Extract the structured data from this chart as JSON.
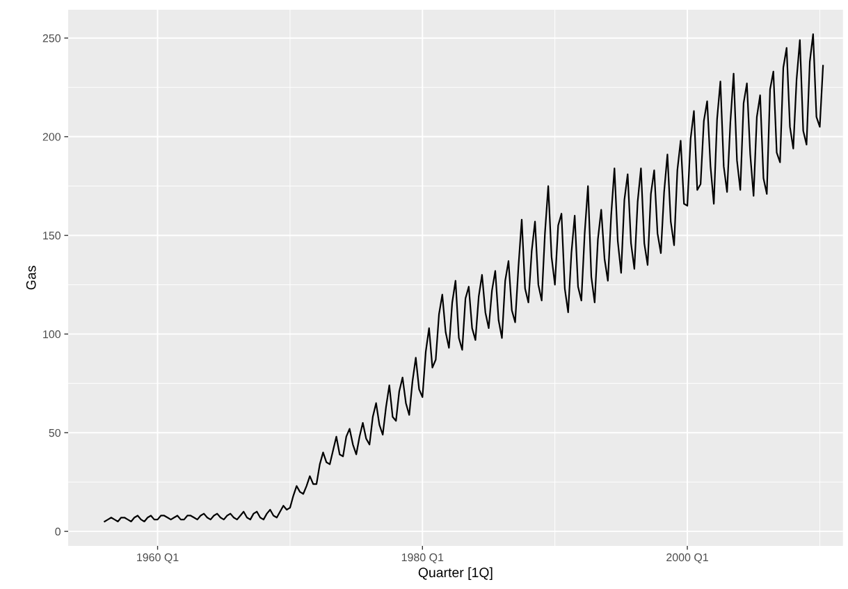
{
  "chart_data": {
    "type": "line",
    "xlabel": "Quarter [1Q]",
    "ylabel": "Gas",
    "x": [
      "1956-01",
      "1956-04",
      "1956-07",
      "1956-10",
      "1957-01",
      "1957-04",
      "1957-07",
      "1957-10",
      "1958-01",
      "1958-04",
      "1958-07",
      "1958-10",
      "1959-01",
      "1959-04",
      "1959-07",
      "1959-10",
      "1960-01",
      "1960-04",
      "1960-07",
      "1960-10",
      "1961-01",
      "1961-04",
      "1961-07",
      "1961-10",
      "1962-01",
      "1962-04",
      "1962-07",
      "1962-10",
      "1963-01",
      "1963-04",
      "1963-07",
      "1963-10",
      "1964-01",
      "1964-04",
      "1964-07",
      "1964-10",
      "1965-01",
      "1965-04",
      "1965-07",
      "1965-10",
      "1966-01",
      "1966-04",
      "1966-07",
      "1966-10",
      "1967-01",
      "1967-04",
      "1967-07",
      "1967-10",
      "1968-01",
      "1968-04",
      "1968-07",
      "1968-10",
      "1969-01",
      "1969-04",
      "1969-07",
      "1969-10",
      "1970-01",
      "1970-04",
      "1970-07",
      "1970-10",
      "1971-01",
      "1971-04",
      "1971-07",
      "1971-10",
      "1972-01",
      "1972-04",
      "1972-07",
      "1972-10",
      "1973-01",
      "1973-04",
      "1973-07",
      "1973-10",
      "1974-01",
      "1974-04",
      "1974-07",
      "1974-10",
      "1975-01",
      "1975-04",
      "1975-07",
      "1975-10",
      "1976-01",
      "1976-04",
      "1976-07",
      "1976-10",
      "1977-01",
      "1977-04",
      "1977-07",
      "1977-10",
      "1978-01",
      "1978-04",
      "1978-07",
      "1978-10",
      "1979-01",
      "1979-04",
      "1979-07",
      "1979-10",
      "1980-01",
      "1980-04",
      "1980-07",
      "1980-10",
      "1981-01",
      "1981-04",
      "1981-07",
      "1981-10",
      "1982-01",
      "1982-04",
      "1982-07",
      "1982-10",
      "1983-01",
      "1983-04",
      "1983-07",
      "1983-10",
      "1984-01",
      "1984-04",
      "1984-07",
      "1984-10",
      "1985-01",
      "1985-04",
      "1985-07",
      "1985-10",
      "1986-01",
      "1986-04",
      "1986-07",
      "1986-10",
      "1987-01",
      "1987-04",
      "1987-07",
      "1987-10",
      "1988-01",
      "1988-04",
      "1988-07",
      "1988-10",
      "1989-01",
      "1989-04",
      "1989-07",
      "1989-10",
      "1990-01",
      "1990-04",
      "1990-07",
      "1990-10",
      "1991-01",
      "1991-04",
      "1991-07",
      "1991-10",
      "1992-01",
      "1992-04",
      "1992-07",
      "1992-10",
      "1993-01",
      "1993-04",
      "1993-07",
      "1993-10",
      "1994-01",
      "1994-04",
      "1994-07",
      "1994-10",
      "1995-01",
      "1995-04",
      "1995-07",
      "1995-10",
      "1996-01",
      "1996-04",
      "1996-07",
      "1996-10",
      "1997-01",
      "1997-04",
      "1997-07",
      "1997-10",
      "1998-01",
      "1998-04",
      "1998-07",
      "1998-10",
      "1999-01",
      "1999-04",
      "1999-07",
      "1999-10",
      "2000-01",
      "2000-04",
      "2000-07",
      "2000-10",
      "2001-01",
      "2001-04",
      "2001-07",
      "2001-10",
      "2002-01",
      "2002-04",
      "2002-07",
      "2002-10",
      "2003-01",
      "2003-04",
      "2003-07",
      "2003-10",
      "2004-01",
      "2004-04",
      "2004-07",
      "2004-10",
      "2005-01",
      "2005-04",
      "2005-07",
      "2005-10",
      "2006-01",
      "2006-04",
      "2006-07",
      "2006-10",
      "2007-01",
      "2007-04",
      "2007-07",
      "2007-10",
      "2008-01",
      "2008-04",
      "2008-07",
      "2008-10",
      "2009-01",
      "2009-04",
      "2009-07",
      "2009-10",
      "2010-01",
      "2010-04"
    ],
    "series": [
      {
        "color": "#000000",
        "values": [
          5,
          6,
          7,
          6,
          5,
          7,
          7,
          6,
          5,
          7,
          8,
          6,
          5,
          7,
          8,
          6,
          6,
          8,
          8,
          7,
          6,
          7,
          8,
          6,
          6,
          8,
          8,
          7,
          6,
          8,
          9,
          7,
          6,
          8,
          9,
          7,
          6,
          8,
          9,
          7,
          6,
          8,
          10,
          7,
          6,
          9,
          10,
          7,
          6,
          9,
          11,
          8,
          7,
          10,
          13,
          11,
          12,
          18,
          23,
          20,
          19,
          23,
          28,
          24,
          24,
          34,
          40,
          35,
          34,
          41,
          48,
          39,
          38,
          48,
          52,
          44,
          39,
          48,
          55,
          47,
          44,
          58,
          65,
          54,
          49,
          63,
          74,
          58,
          56,
          71,
          78,
          65,
          59,
          76,
          88,
          72,
          68,
          91,
          103,
          83,
          87,
          110,
          120,
          101,
          93,
          116,
          127,
          98,
          92,
          118,
          124,
          103,
          97,
          119,
          130,
          111,
          103,
          122,
          132,
          107,
          98,
          127,
          137,
          112,
          106,
          134,
          158,
          123,
          116,
          142,
          157,
          125,
          117,
          151,
          175,
          139,
          125,
          155,
          161,
          123,
          111,
          141,
          160,
          124,
          117,
          151,
          175,
          129,
          116,
          148,
          163,
          138,
          127,
          160,
          184,
          147,
          131,
          168,
          181,
          146,
          133,
          167,
          184,
          146,
          135,
          171,
          183,
          151,
          141,
          172,
          191,
          157,
          145,
          183,
          198,
          166,
          165,
          199,
          213,
          173,
          176,
          208,
          218,
          185,
          166,
          209,
          228,
          185,
          172,
          207,
          232,
          188,
          173,
          217,
          227,
          191,
          170,
          210,
          221,
          179,
          171,
          224,
          233,
          192,
          187,
          235,
          245,
          205,
          194,
          229,
          249,
          203,
          196,
          238,
          252,
          210,
          205,
          236
        ]
      }
    ],
    "xlim": [
      "1953-04",
      "2011-10"
    ],
    "ylim": [
      -7.35,
      264.35
    ],
    "xticks": [
      {
        "value": "1960-01",
        "label": "1960 Q1"
      },
      {
        "value": "1980-01",
        "label": "1980 Q1"
      },
      {
        "value": "2000-01",
        "label": "2000 Q1"
      }
    ],
    "yticks": [
      0,
      50,
      100,
      150,
      200,
      250
    ],
    "grid": true,
    "line_style": "solid",
    "marker": "none"
  }
}
